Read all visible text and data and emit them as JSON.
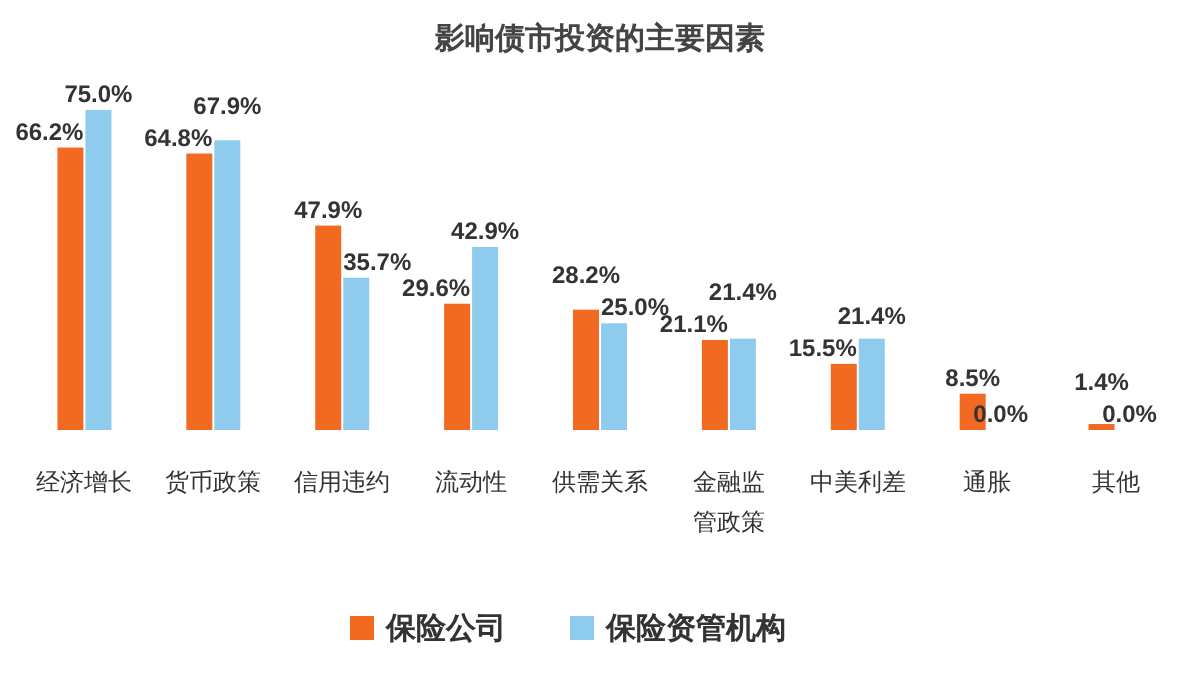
{
  "chart_data": {
    "type": "bar",
    "title": "影响债市投资的主要因素",
    "categories": [
      "经济增长",
      "货币政策",
      "信用违约",
      "流动性",
      "供需关系",
      "金融监管政策",
      "中美利差",
      "通胀",
      "其他"
    ],
    "series": [
      {
        "name": "保险公司",
        "color": "#f26a21",
        "values": [
          66.2,
          64.8,
          47.9,
          29.6,
          28.2,
          21.1,
          15.5,
          8.5,
          1.4
        ],
        "value_labels": [
          "66.2%",
          "64.8%",
          "47.9%",
          "29.6%",
          "28.2%",
          "21.1%",
          "15.5%",
          "8.5%",
          "1.4%"
        ]
      },
      {
        "name": "保险资管机构",
        "color": "#8ecbec",
        "values": [
          75.0,
          67.9,
          35.7,
          42.9,
          25.0,
          21.4,
          21.4,
          0.0,
          0.0
        ],
        "value_labels": [
          "75.0%",
          "67.9%",
          "35.7%",
          "42.9%",
          "25.0%",
          "21.4%",
          "21.4%",
          "0.0%",
          "0.0%"
        ]
      }
    ],
    "legend": "bottom"
  }
}
